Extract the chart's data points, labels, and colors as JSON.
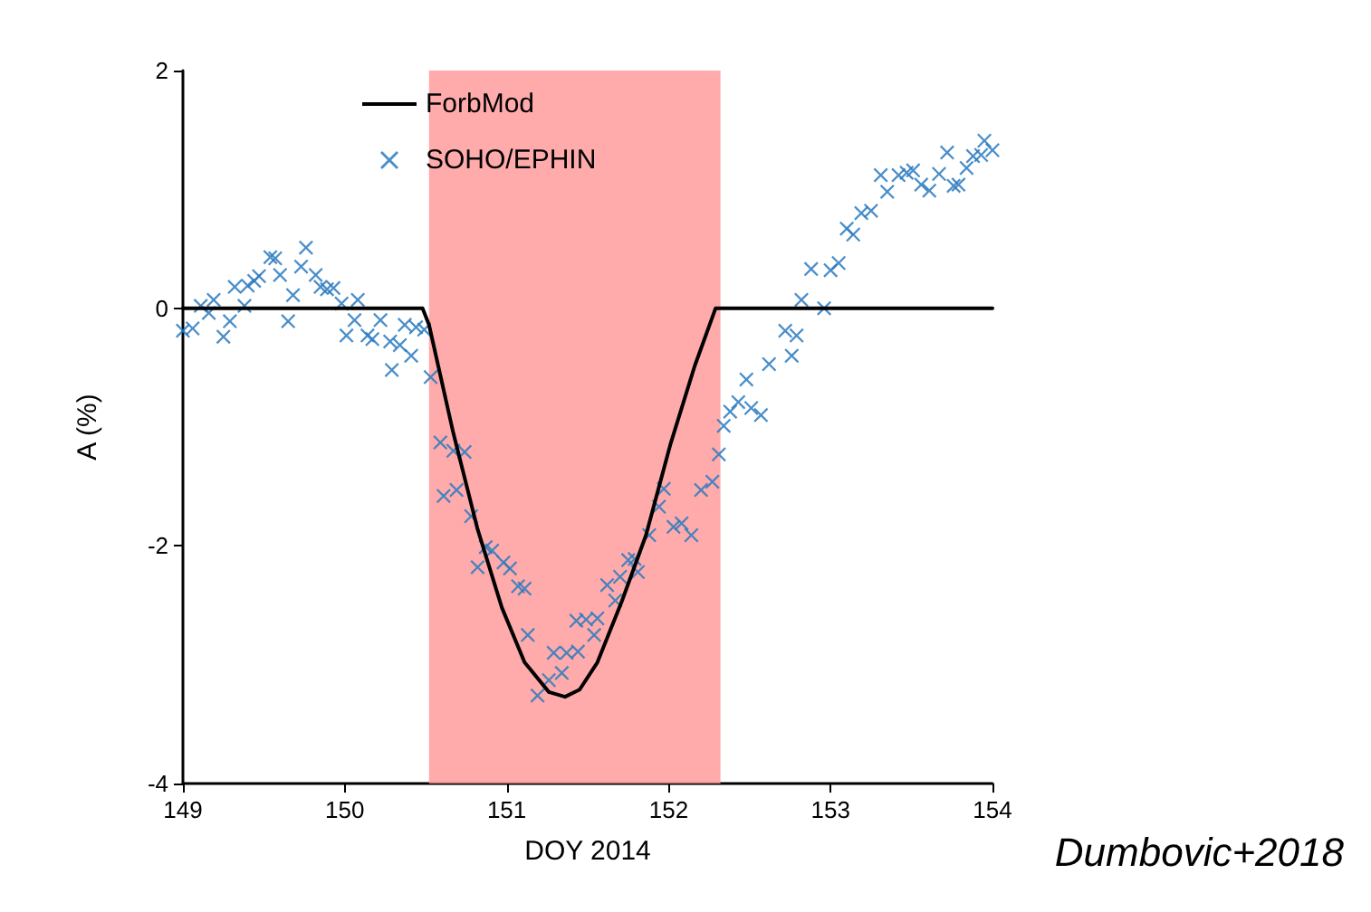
{
  "chart_data": {
    "type": "line",
    "xlabel": "DOY 2014",
    "ylabel": "A (%)",
    "xlim": [
      149,
      154
    ],
    "xticks": [
      149,
      150,
      151,
      152,
      153,
      154
    ],
    "ylim": [
      -4,
      2
    ],
    "yticks": [
      -4,
      -2,
      0,
      2
    ],
    "grid": false,
    "legend": "top left",
    "bands": [
      {
        "axis": "x",
        "from": 150.52,
        "to": 152.32,
        "color": "#ff9999"
      }
    ],
    "annotations": [
      "Dumbovic+2018"
    ],
    "series": [
      {
        "name": "ForbMod",
        "color": "#000000",
        "marker": "none",
        "line_style": "solid",
        "x": [
          149,
          150.48,
          150.52,
          150.67,
          150.82,
          150.97,
          151.11,
          151.26,
          151.36,
          151.45,
          151.56,
          151.71,
          151.86,
          152.01,
          152.16,
          152.29,
          154
        ],
        "values": [
          0,
          0,
          -0.14,
          -1.05,
          -1.86,
          -2.52,
          -2.98,
          -3.23,
          -3.27,
          -3.21,
          -2.98,
          -2.47,
          -1.91,
          -1.15,
          -0.49,
          0,
          0
        ]
      },
      {
        "name": "SOHO/EPHIN",
        "type": "scatter",
        "color": "#2a7ac0",
        "marker": "cross",
        "x": [
          149.0,
          149.06,
          149.11,
          149.16,
          149.19,
          149.25,
          149.29,
          149.32,
          149.38,
          149.4,
          149.44,
          149.47,
          149.54,
          149.57,
          149.6,
          149.65,
          149.68,
          149.73,
          149.76,
          149.82,
          149.85,
          149.89,
          149.93,
          149.98,
          150.01,
          150.06,
          150.08,
          150.14,
          150.17,
          150.22,
          150.28,
          150.29,
          150.34,
          150.37,
          150.41,
          150.44,
          150.49,
          150.53,
          150.59,
          150.67,
          150.74,
          150.61,
          150.69,
          150.78,
          150.87,
          150.91,
          150.82,
          150.98,
          151.02,
          151.07,
          151.11,
          151.13,
          151.19,
          151.26,
          151.29,
          151.34,
          151.37,
          151.44,
          151.43,
          151.49,
          151.54,
          151.56,
          151.62,
          151.67,
          151.7,
          151.75,
          151.79,
          151.81,
          151.88,
          151.94,
          151.97,
          152.03,
          152.08,
          152.14,
          152.2,
          152.27,
          152.31,
          152.34,
          152.38,
          152.43,
          152.48,
          152.51,
          152.57,
          152.62,
          152.72,
          152.76,
          152.79,
          152.82,
          152.88,
          152.96,
          153.0,
          153.05,
          153.1,
          153.14,
          153.19,
          153.25,
          153.31,
          153.35,
          153.42,
          153.47,
          153.51,
          153.56,
          153.61,
          153.67,
          153.72,
          153.76,
          153.79,
          153.84,
          153.88,
          153.93,
          153.95,
          154.0
        ],
        "values": [
          -0.19,
          -0.17,
          0.02,
          -0.04,
          0.07,
          -0.24,
          -0.11,
          0.18,
          0.02,
          0.19,
          0.23,
          0.27,
          0.43,
          0.42,
          0.28,
          -0.11,
          0.11,
          0.35,
          0.51,
          0.28,
          0.18,
          0.16,
          0.17,
          0.04,
          -0.23,
          -0.1,
          0.07,
          -0.23,
          -0.26,
          -0.1,
          -0.28,
          -0.52,
          -0.31,
          -0.14,
          -0.4,
          -0.16,
          -0.18,
          -0.58,
          -1.13,
          -1.2,
          -1.21,
          -1.58,
          -1.53,
          -1.75,
          -2.01,
          -2.04,
          -2.18,
          -2.14,
          -2.19,
          -2.34,
          -2.36,
          -2.75,
          -3.26,
          -3.13,
          -2.9,
          -3.07,
          -2.9,
          -2.89,
          -2.63,
          -2.62,
          -2.75,
          -2.61,
          -2.33,
          -2.46,
          -2.26,
          -2.12,
          -2.11,
          -2.22,
          -1.91,
          -1.67,
          -1.52,
          -1.84,
          -1.81,
          -1.91,
          -1.53,
          -1.46,
          -1.23,
          -0.99,
          -0.87,
          -0.79,
          -0.6,
          -0.84,
          -0.9,
          -0.47,
          -0.19,
          -0.4,
          -0.23,
          0.07,
          0.33,
          0.0,
          0.32,
          0.38,
          0.67,
          0.62,
          0.8,
          0.82,
          1.12,
          0.98,
          1.12,
          1.14,
          1.16,
          1.04,
          0.99,
          1.13,
          1.31,
          1.03,
          1.04,
          1.18,
          1.28,
          1.29,
          1.41,
          1.33
        ]
      }
    ]
  }
}
